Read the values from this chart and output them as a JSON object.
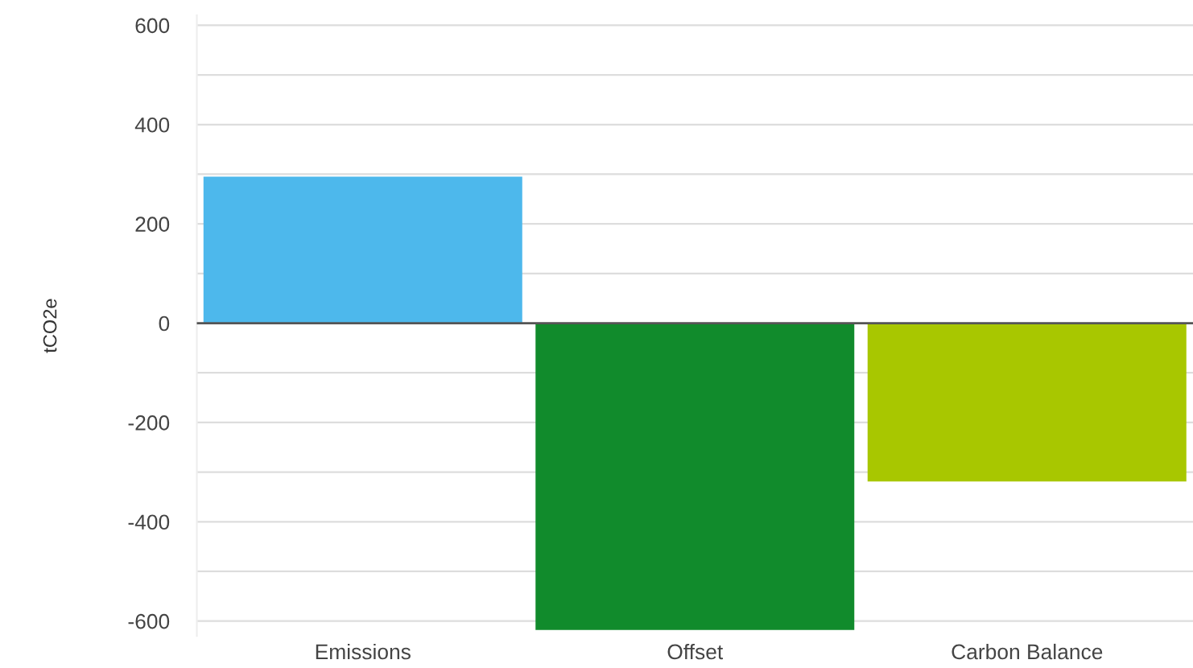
{
  "chart_data": {
    "type": "bar",
    "ylabel": "tCO2e",
    "categories": [
      "Emissions",
      "Offset",
      "Carbon Balance"
    ],
    "values": [
      295,
      -618,
      -319
    ],
    "colors": [
      "#4db8ec",
      "#118b2c",
      "#a8c700"
    ],
    "ylim": [
      -630,
      620
    ],
    "yticks": [
      -600,
      {
        "value": -500,
        "label": null
      },
      -400,
      {
        "value": -300,
        "label": null
      },
      -200,
      {
        "value": -100,
        "label": null
      },
      0,
      {
        "value": 100,
        "label": null
      },
      200,
      {
        "value": 300,
        "label": null
      },
      400,
      {
        "value": 500,
        "label": null
      },
      600
    ],
    "grid": "y",
    "legend": false
  }
}
